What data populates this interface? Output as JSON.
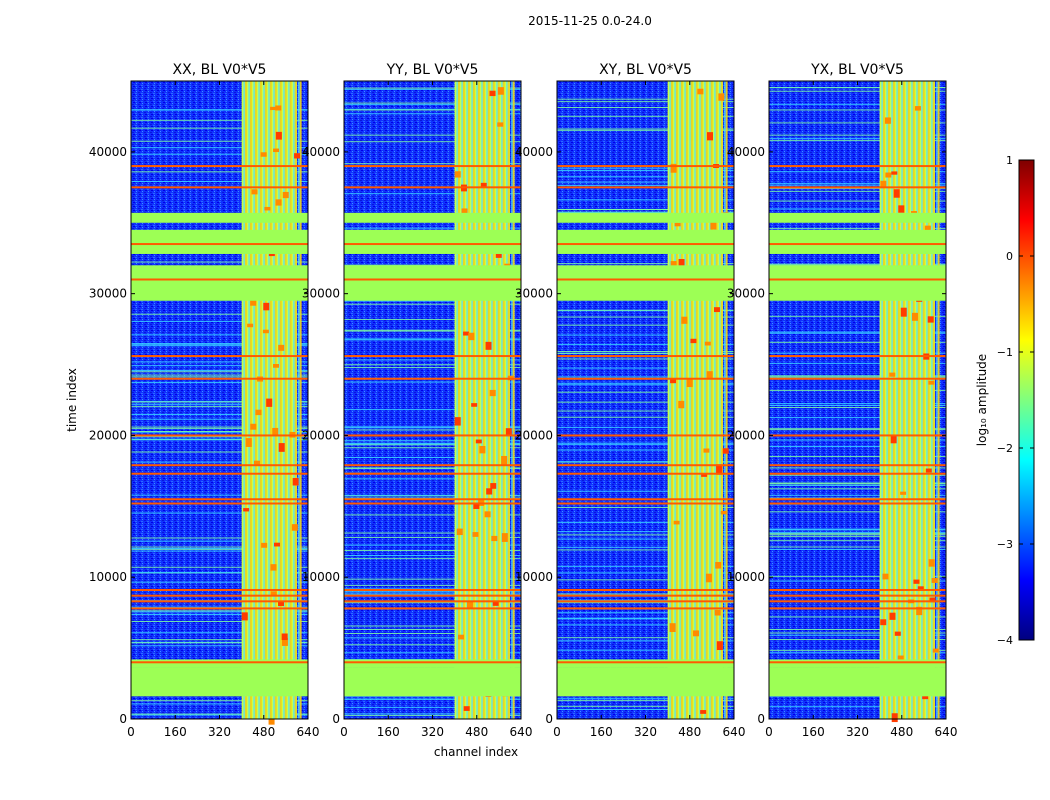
{
  "chart_data": {
    "type": "heatmap",
    "suptitle": "2015-11-25 0.0-24.0",
    "xlabel": "channel index",
    "ylabel": "time index",
    "xlim": [
      0,
      640
    ],
    "ylim": [
      0,
      45000
    ],
    "xticks": [
      0,
      160,
      320,
      480,
      640
    ],
    "yticks": [
      0,
      10000,
      20000,
      30000,
      40000
    ],
    "panels": [
      {
        "title": "XX, BL V0*V5"
      },
      {
        "title": "YY, BL V0*V5"
      },
      {
        "title": "XY, BL V0*V5"
      },
      {
        "title": "YX, BL V0*V5"
      }
    ],
    "colorbar": {
      "label": "log₁₀ amplitude",
      "range": [
        -4,
        1
      ],
      "ticks": [
        1,
        0,
        -1,
        -2,
        -3,
        -4
      ],
      "tick_labels": [
        "1",
        "0",
        "−1",
        "−2",
        "−3",
        "−4"
      ],
      "colormap": "jet",
      "colormap_stops": [
        "#00007f",
        "#0000ff",
        "#007fff",
        "#00ffff",
        "#7fff7f",
        "#ffff00",
        "#ff7f00",
        "#ff0000",
        "#7f0000"
      ]
    },
    "flagged_channel_range": [
      400,
      600
    ],
    "flagged_time_bands": [
      [
        1600,
        3600
      ],
      [
        3600,
        4200
      ],
      [
        29500,
        32000
      ],
      [
        32800,
        34500
      ],
      [
        35000,
        35700
      ]
    ],
    "strong_time_lines": [
      4000,
      7800,
      8300,
      8700,
      9100,
      15200,
      15500,
      17300,
      17900,
      20000,
      24000,
      25600,
      31000,
      33500,
      37500,
      39000
    ]
  }
}
